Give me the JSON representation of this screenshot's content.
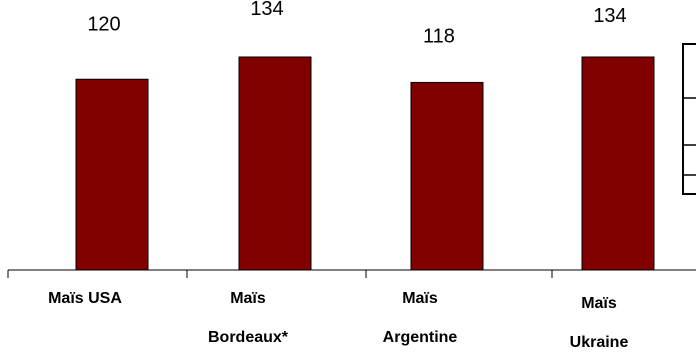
{
  "chart_data": {
    "type": "bar",
    "categories": [
      [
        "Maïs USA"
      ],
      [
        "Maïs",
        "Bordeaux*"
      ],
      [
        "Maïs",
        "Argentine"
      ],
      [
        "Maïs",
        "Ukraine"
      ]
    ],
    "values": [
      120,
      134,
      118,
      134
    ],
    "data_labels": [
      "120",
      "134",
      "118",
      "134"
    ],
    "title": "",
    "xlabel": "",
    "ylabel": "",
    "ylim": [
      0,
      134
    ],
    "grid": false,
    "bar_color": "#800000",
    "legend_placement": "right"
  }
}
